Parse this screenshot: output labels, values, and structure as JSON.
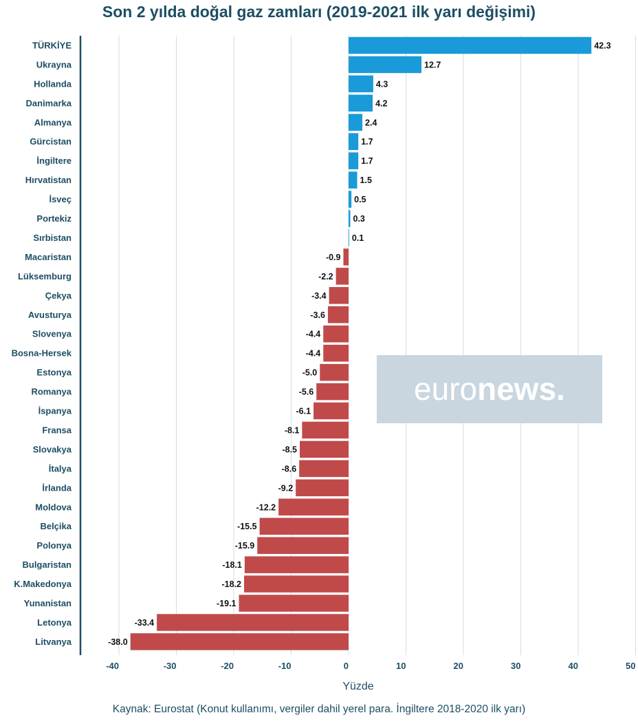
{
  "chart_data": {
    "type": "bar",
    "orientation": "horizontal",
    "title": "Son 2 yılda doğal gaz zamları (2019-2021 ilk yarı değişimi)",
    "xlabel": "Yüzde",
    "ylabel": "",
    "xlim": [
      -42,
      50
    ],
    "xticks": [
      -40,
      -30,
      -20,
      -10,
      0,
      10,
      20,
      30,
      40,
      50
    ],
    "grid": true,
    "positive_color": "#1a9ad8",
    "negative_color": "#c04a4a",
    "categories": [
      "TÜRKİYE",
      "Ukrayna",
      "Hollanda",
      "Danimarka",
      "Almanya",
      "Gürcistan",
      "İngiltere",
      "Hırvatistan",
      "İsveç",
      "Portekiz",
      "Sırbistan",
      "Macaristan",
      "Lüksemburg",
      "Çekya",
      "Avusturya",
      "Slovenya",
      "Bosna-Hersek",
      "Estonya",
      "Romanya",
      "İspanya",
      "Fransa",
      "Slovakya",
      "İtalya",
      "İrlanda",
      "Moldova",
      "Belçika",
      "Polonya",
      "Bulgaristan",
      "K.Makedonya",
      "Yunanistan",
      "Letonya",
      "Litvanya"
    ],
    "values": [
      42.3,
      12.7,
      4.3,
      4.2,
      2.4,
      1.7,
      1.7,
      1.5,
      0.5,
      0.3,
      0.1,
      -0.9,
      -2.2,
      -3.4,
      -3.6,
      -4.4,
      -4.4,
      -5.0,
      -5.6,
      -6.1,
      -8.1,
      -8.5,
      -8.6,
      -9.2,
      -12.2,
      -15.5,
      -15.9,
      -18.1,
      -18.2,
      -19.1,
      -33.4,
      -38.0
    ],
    "value_labels": [
      "42.3",
      "12.7",
      "4.3",
      "4.2",
      "2.4",
      "1.7",
      "1.7",
      "1.5",
      "0.5",
      "0.3",
      "0.1",
      "-0.9",
      "-2.2",
      "-3.4",
      "-3.6",
      "-4.4",
      "-4.4",
      "-5.0",
      "-5.6",
      "-6.1",
      "-8.1",
      "-8.5",
      "-8.6",
      "-9.2",
      "-12.2",
      "-15.5",
      "-15.9",
      "-18.1",
      "-18.2",
      "-19.1",
      "-33.4",
      "-38.0"
    ]
  },
  "watermark": {
    "part1": "euro",
    "part2": "news."
  },
  "source": "Kaynak: Eurostat (Konut kullanımı, vergiler dahil yerel para. İngiltere 2018-2020 ilk yarı)"
}
